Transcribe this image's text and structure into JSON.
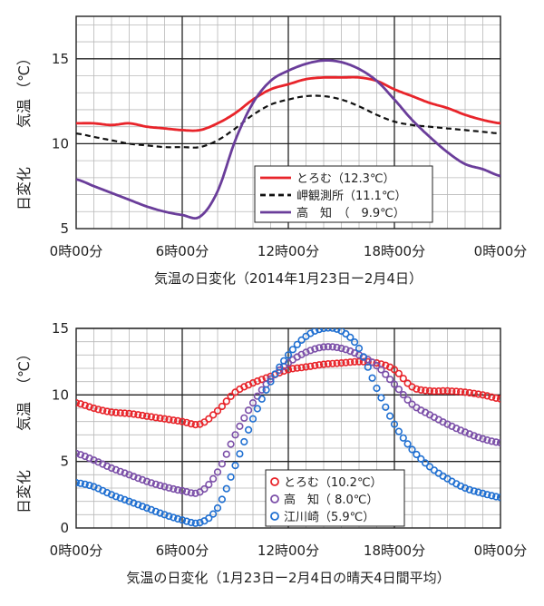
{
  "chart_data": [
    {
      "type": "line",
      "title": "",
      "caption": "気温の日変化（2014年1月23日ー2月4日）",
      "ylabel": "日変化　気温（℃）",
      "ylabel_parts": [
        "日変化",
        "気温",
        "（℃）"
      ],
      "xlabel": "",
      "x_ticks": [
        "0時00分",
        "6時00分",
        "12時00分",
        "18時00分",
        "0時00分"
      ],
      "y_ticks": [
        5,
        10,
        15
      ],
      "ylim": [
        5,
        17.5
      ],
      "xlim": [
        0,
        24
      ],
      "grid": true,
      "legend_position": "lower-center",
      "legend": [
        "とろむ（12.3℃）",
        "岬観測所（11.1℃）",
        "高　知　（　9.9℃）"
      ],
      "series": [
        {
          "name": "とろむ（12.3℃）",
          "color": "#e8242a",
          "style": "solid",
          "x": [
            0,
            1,
            2,
            3,
            4,
            5,
            6,
            7,
            8,
            9,
            10,
            11,
            12,
            13,
            14,
            15,
            16,
            17,
            18,
            19,
            20,
            21,
            22,
            23,
            24
          ],
          "y": [
            11.2,
            11.2,
            11.1,
            11.2,
            11.0,
            10.9,
            10.8,
            10.8,
            11.2,
            11.8,
            12.6,
            13.2,
            13.5,
            13.8,
            13.9,
            13.9,
            13.9,
            13.7,
            13.2,
            12.8,
            12.4,
            12.1,
            11.7,
            11.4,
            11.2
          ]
        },
        {
          "name": "岬観測所（11.1℃）",
          "color": "#111111",
          "style": "dashed",
          "x": [
            0,
            1,
            2,
            3,
            4,
            5,
            6,
            7,
            8,
            9,
            10,
            11,
            12,
            13,
            14,
            15,
            16,
            17,
            18,
            19,
            20,
            21,
            22,
            23,
            24
          ],
          "y": [
            10.6,
            10.4,
            10.2,
            10.0,
            9.9,
            9.8,
            9.8,
            9.8,
            10.2,
            10.9,
            11.7,
            12.3,
            12.6,
            12.8,
            12.8,
            12.6,
            12.2,
            11.7,
            11.3,
            11.1,
            11.0,
            10.9,
            10.8,
            10.7,
            10.6
          ]
        },
        {
          "name": "高　知　（　9.9℃）",
          "color": "#6a3d9a",
          "style": "solid",
          "x": [
            0,
            1,
            2,
            3,
            4,
            5,
            6,
            7,
            8,
            9,
            10,
            11,
            12,
            13,
            14,
            15,
            16,
            17,
            18,
            19,
            20,
            21,
            22,
            23,
            24
          ],
          "y": [
            7.9,
            7.5,
            7.1,
            6.7,
            6.3,
            6.0,
            5.8,
            5.7,
            7.2,
            10.2,
            12.4,
            13.7,
            14.3,
            14.7,
            14.9,
            14.8,
            14.4,
            13.7,
            12.6,
            11.4,
            10.4,
            9.5,
            8.8,
            8.5,
            8.1
          ]
        }
      ]
    },
    {
      "type": "scatter",
      "title": "",
      "caption": "気温の日変化（1月23日ー2月4日の晴天4日間平均）",
      "ylabel": "日変化　気温（℃）",
      "ylabel_parts": [
        "日変化",
        "気温",
        "（℃）"
      ],
      "xlabel": "",
      "x_ticks": [
        "0時00分",
        "6時00分",
        "12時00分",
        "18時00分",
        "0時00分"
      ],
      "y_ticks": [
        0,
        5,
        10,
        15
      ],
      "ylim": [
        0,
        15
      ],
      "xlim": [
        0,
        24
      ],
      "grid": true,
      "legend_position": "lower-center",
      "legend": [
        "とろむ（10.2℃）",
        "高　知（ 8.0℃）",
        "江川崎（5.9℃）"
      ],
      "series": [
        {
          "name": "とろむ（10.2℃）",
          "color": "#e8242a",
          "marker": "open-circle",
          "x": [
            0,
            1,
            2,
            3,
            4,
            5,
            6,
            7,
            8,
            9,
            10,
            11,
            12,
            13,
            14,
            15,
            16,
            17,
            18,
            19,
            20,
            21,
            22,
            23,
            24
          ],
          "y": [
            9.4,
            9.0,
            8.7,
            8.6,
            8.4,
            8.2,
            8.0,
            7.8,
            8.8,
            10.2,
            10.9,
            11.4,
            11.9,
            12.1,
            12.3,
            12.4,
            12.5,
            12.4,
            11.9,
            10.6,
            10.3,
            10.3,
            10.2,
            10.0,
            9.7
          ]
        },
        {
          "name": "高　知（ 8.0℃）",
          "color": "#7b4fa8",
          "marker": "open-circle",
          "x": [
            0,
            1,
            2,
            3,
            4,
            5,
            6,
            7,
            8,
            9,
            10,
            11,
            12,
            13,
            14,
            15,
            16,
            17,
            18,
            19,
            20,
            21,
            22,
            23,
            24
          ],
          "y": [
            5.6,
            5.1,
            4.5,
            4.0,
            3.5,
            3.1,
            2.8,
            2.7,
            4.2,
            7.0,
            9.4,
            11.2,
            12.4,
            13.2,
            13.6,
            13.5,
            13.0,
            12.2,
            10.8,
            9.3,
            8.5,
            7.8,
            7.2,
            6.7,
            6.4
          ]
        },
        {
          "name": "江川崎（5.9℃）",
          "color": "#1f6fd1",
          "marker": "open-circle",
          "x": [
            0,
            1,
            2,
            3,
            4,
            5,
            6,
            7,
            8,
            9,
            10,
            11,
            12,
            13,
            14,
            15,
            16,
            17,
            18,
            19,
            20,
            21,
            22,
            23,
            24
          ],
          "y": [
            3.4,
            3.1,
            2.5,
            2.0,
            1.5,
            1.0,
            0.6,
            0.4,
            1.5,
            4.7,
            8.2,
            11.0,
            13.0,
            14.4,
            15.0,
            14.8,
            13.5,
            10.5,
            7.8,
            5.9,
            4.6,
            3.7,
            3.0,
            2.6,
            2.3
          ]
        }
      ]
    }
  ]
}
